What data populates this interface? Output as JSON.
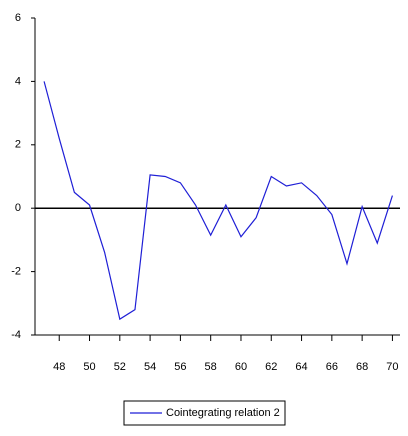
{
  "chart_data": {
    "type": "line",
    "x": [
      47,
      48,
      49,
      50,
      51,
      52,
      53,
      54,
      55,
      56,
      57,
      58,
      59,
      60,
      61,
      62,
      63,
      64,
      65,
      66,
      67,
      68,
      69,
      70
    ],
    "series": [
      {
        "name": "Cointegrating relation 2",
        "color": "#1f1fd6",
        "values": [
          4.0,
          2.2,
          0.5,
          0.1,
          -1.4,
          -3.5,
          -3.2,
          1.05,
          1.0,
          0.8,
          0.1,
          -0.85,
          0.1,
          -0.9,
          -0.3,
          1.0,
          0.7,
          0.8,
          0.4,
          -0.2,
          -1.75,
          0.05,
          -1.1,
          0.4
        ]
      }
    ],
    "xlim": [
      46.4,
      70.5
    ],
    "xticks": [
      48,
      50,
      52,
      54,
      56,
      58,
      60,
      62,
      64,
      66,
      68,
      70
    ],
    "ylim": [
      -4,
      6
    ],
    "yticks": [
      -4,
      -2,
      0,
      2,
      4,
      6
    ],
    "legend": "bottom"
  }
}
